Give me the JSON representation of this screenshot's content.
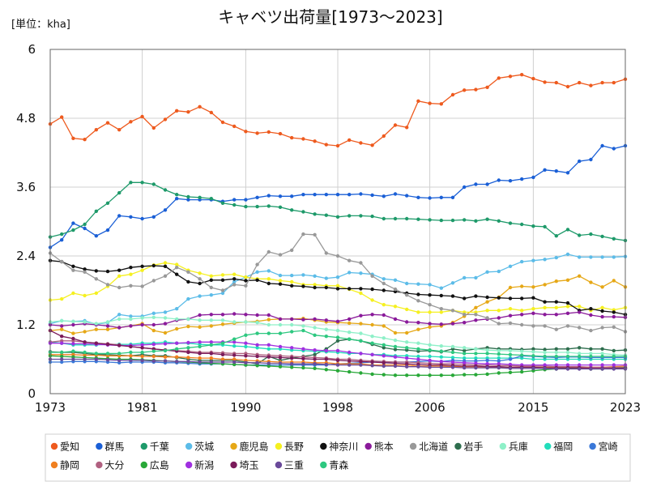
{
  "chart_data": {
    "type": "line",
    "title": "キャベツ出荷量[1973～2023]",
    "unit_label": "[単位：kha]",
    "xlabel": "",
    "ylabel": "",
    "xlim": [
      1973,
      2023
    ],
    "ylim": [
      0,
      6
    ],
    "x_ticks": [
      1973,
      1981,
      1990,
      1998,
      2006,
      2015,
      2023
    ],
    "y_ticks": [
      0,
      1.2,
      2.4,
      3.6,
      4.8,
      6
    ],
    "y_tick_labels": [
      "0",
      "1.2",
      "2.4",
      "3.6",
      "4.8",
      "6"
    ],
    "grid": true,
    "legend_position": "bottom",
    "x": [
      1973,
      1974,
      1975,
      1976,
      1977,
      1978,
      1979,
      1980,
      1981,
      1982,
      1983,
      1984,
      1985,
      1986,
      1987,
      1988,
      1989,
      1990,
      1991,
      1992,
      1993,
      1994,
      1995,
      1996,
      1997,
      1998,
      1999,
      2000,
      2001,
      2002,
      2003,
      2004,
      2005,
      2006,
      2007,
      2008,
      2009,
      2010,
      2011,
      2012,
      2013,
      2014,
      2015,
      2016,
      2017,
      2018,
      2019,
      2020,
      2021,
      2022,
      2023
    ],
    "series": [
      {
        "name": "愛知",
        "color": "#ee5a1e",
        "values": [
          4.7,
          4.82,
          4.45,
          4.43,
          4.6,
          4.72,
          4.6,
          4.74,
          4.83,
          4.63,
          4.78,
          4.93,
          4.91,
          5.0,
          4.9,
          4.73,
          4.66,
          4.57,
          4.54,
          4.56,
          4.53,
          4.46,
          4.44,
          4.4,
          4.34,
          4.32,
          4.42,
          4.37,
          4.33,
          4.49,
          4.68,
          4.64,
          5.1,
          5.06,
          5.05,
          5.21,
          5.29,
          5.3,
          5.34,
          5.5,
          5.53,
          5.56,
          5.49,
          5.43,
          5.42,
          5.35,
          5.42,
          5.37,
          5.42,
          5.42,
          5.48
        ]
      },
      {
        "name": "群馬",
        "color": "#1a5fd6",
        "values": [
          2.55,
          2.68,
          2.97,
          2.88,
          2.75,
          2.85,
          3.1,
          3.08,
          3.05,
          3.08,
          3.2,
          3.4,
          3.38,
          3.38,
          3.38,
          3.35,
          3.38,
          3.38,
          3.42,
          3.45,
          3.44,
          3.44,
          3.47,
          3.47,
          3.47,
          3.47,
          3.47,
          3.48,
          3.46,
          3.44,
          3.48,
          3.45,
          3.42,
          3.41,
          3.42,
          3.42,
          3.6,
          3.65,
          3.65,
          3.72,
          3.71,
          3.74,
          3.77,
          3.9,
          3.88,
          3.85,
          4.05,
          4.08,
          4.32,
          4.27,
          4.32
        ]
      },
      {
        "name": "千葉",
        "color": "#1e9a6a",
        "values": [
          2.73,
          2.78,
          2.85,
          2.95,
          3.18,
          3.32,
          3.5,
          3.68,
          3.68,
          3.65,
          3.55,
          3.47,
          3.43,
          3.42,
          3.4,
          3.32,
          3.29,
          3.26,
          3.26,
          3.27,
          3.25,
          3.2,
          3.17,
          3.13,
          3.11,
          3.08,
          3.1,
          3.1,
          3.09,
          3.05,
          3.05,
          3.05,
          3.04,
          3.03,
          3.02,
          3.02,
          3.03,
          3.01,
          3.04,
          3.01,
          2.97,
          2.95,
          2.92,
          2.91,
          2.75,
          2.86,
          2.76,
          2.78,
          2.74,
          2.7,
          2.67
        ]
      },
      {
        "name": "茨城",
        "color": "#5cbce8",
        "values": [
          1.22,
          1.27,
          1.26,
          1.27,
          1.21,
          1.24,
          1.38,
          1.35,
          1.35,
          1.4,
          1.42,
          1.48,
          1.65,
          1.7,
          1.72,
          1.75,
          1.95,
          2.03,
          2.12,
          2.14,
          2.06,
          2.06,
          2.07,
          2.05,
          2.01,
          2.03,
          2.11,
          2.1,
          2.08,
          2.0,
          1.98,
          1.92,
          1.91,
          1.9,
          1.84,
          1.93,
          2.02,
          2.02,
          2.12,
          2.13,
          2.22,
          2.3,
          2.32,
          2.34,
          2.37,
          2.43,
          2.38,
          2.38,
          2.38,
          2.38,
          2.39
        ]
      },
      {
        "name": "鹿児島",
        "color": "#e6a817",
        "values": [
          1.1,
          1.12,
          1.05,
          1.08,
          1.12,
          1.12,
          1.15,
          1.18,
          1.22,
          1.1,
          1.06,
          1.13,
          1.17,
          1.16,
          1.18,
          1.21,
          1.23,
          1.25,
          1.26,
          1.29,
          1.3,
          1.3,
          1.31,
          1.28,
          1.25,
          1.24,
          1.23,
          1.22,
          1.2,
          1.18,
          1.06,
          1.06,
          1.12,
          1.16,
          1.18,
          1.24,
          1.35,
          1.5,
          1.6,
          1.68,
          1.85,
          1.87,
          1.86,
          1.9,
          1.96,
          1.98,
          2.05,
          1.94,
          1.86,
          1.97,
          1.86
        ]
      },
      {
        "name": "長野",
        "color": "#f5f020",
        "values": [
          1.63,
          1.65,
          1.75,
          1.71,
          1.75,
          1.87,
          2.05,
          2.08,
          2.15,
          2.24,
          2.28,
          2.25,
          2.15,
          2.1,
          2.05,
          2.07,
          2.08,
          2.03,
          2.0,
          2.0,
          1.97,
          1.95,
          1.9,
          1.9,
          1.88,
          1.88,
          1.82,
          1.75,
          1.63,
          1.55,
          1.52,
          1.47,
          1.42,
          1.42,
          1.42,
          1.45,
          1.42,
          1.42,
          1.45,
          1.45,
          1.48,
          1.45,
          1.48,
          1.5,
          1.5,
          1.52,
          1.52,
          1.45,
          1.5,
          1.46,
          1.5
        ]
      },
      {
        "name": "神奈川",
        "color": "#111111",
        "values": [
          2.32,
          2.3,
          2.22,
          2.17,
          2.14,
          2.13,
          2.15,
          2.2,
          2.22,
          2.23,
          2.22,
          2.08,
          1.95,
          1.92,
          1.98,
          1.98,
          2.0,
          1.97,
          1.98,
          1.92,
          1.91,
          1.88,
          1.87,
          1.85,
          1.85,
          1.83,
          1.83,
          1.83,
          1.82,
          1.8,
          1.78,
          1.75,
          1.73,
          1.72,
          1.71,
          1.7,
          1.66,
          1.7,
          1.68,
          1.67,
          1.66,
          1.66,
          1.67,
          1.6,
          1.6,
          1.58,
          1.45,
          1.48,
          1.44,
          1.42,
          1.38
        ]
      },
      {
        "name": "熊本",
        "color": "#8a1a9a",
        "values": [
          1.2,
          1.18,
          1.2,
          1.22,
          1.2,
          1.18,
          1.15,
          1.18,
          1.2,
          1.2,
          1.22,
          1.28,
          1.3,
          1.37,
          1.38,
          1.38,
          1.39,
          1.38,
          1.37,
          1.37,
          1.3,
          1.3,
          1.29,
          1.3,
          1.28,
          1.26,
          1.3,
          1.36,
          1.38,
          1.37,
          1.3,
          1.25,
          1.24,
          1.22,
          1.21,
          1.22,
          1.24,
          1.28,
          1.3,
          1.32,
          1.36,
          1.38,
          1.4,
          1.38,
          1.38,
          1.4,
          1.42,
          1.37,
          1.34,
          1.34,
          1.33
        ]
      },
      {
        "name": "北海道",
        "color": "#999999",
        "values": [
          2.45,
          2.3,
          2.15,
          2.12,
          2.0,
          1.9,
          1.85,
          1.88,
          1.87,
          1.97,
          2.05,
          2.2,
          2.12,
          2.0,
          1.85,
          1.8,
          1.9,
          1.88,
          2.25,
          2.47,
          2.42,
          2.5,
          2.78,
          2.77,
          2.45,
          2.4,
          2.32,
          2.28,
          2.05,
          1.92,
          1.82,
          1.72,
          1.62,
          1.55,
          1.48,
          1.45,
          1.38,
          1.38,
          1.32,
          1.22,
          1.23,
          1.2,
          1.18,
          1.18,
          1.12,
          1.18,
          1.15,
          1.1,
          1.15,
          1.16,
          1.08
        ]
      },
      {
        "name": "岩手",
        "color": "#2e6e4e",
        "values": [
          0.73,
          0.72,
          0.72,
          0.7,
          0.68,
          0.68,
          0.67,
          0.66,
          0.68,
          0.66,
          0.66,
          0.63,
          0.6,
          0.58,
          0.58,
          0.58,
          0.58,
          0.55,
          0.52,
          0.65,
          0.58,
          0.62,
          0.65,
          0.68,
          0.78,
          0.92,
          0.95,
          0.92,
          0.86,
          0.8,
          0.77,
          0.76,
          0.74,
          0.75,
          0.73,
          0.78,
          0.75,
          0.78,
          0.8,
          0.78,
          0.78,
          0.77,
          0.78,
          0.77,
          0.78,
          0.78,
          0.8,
          0.78,
          0.78,
          0.75,
          0.76
        ]
      },
      {
        "name": "兵庫",
        "color": "#8ef0c8",
        "values": [
          1.25,
          1.27,
          1.26,
          1.25,
          1.22,
          1.25,
          1.3,
          1.3,
          1.32,
          1.33,
          1.32,
          1.3,
          1.3,
          1.28,
          1.28,
          1.28,
          1.25,
          1.25,
          1.24,
          1.2,
          1.2,
          1.2,
          1.18,
          1.15,
          1.12,
          1.1,
          1.07,
          1.05,
          1.0,
          0.97,
          0.93,
          0.9,
          0.88,
          0.85,
          0.83,
          0.82,
          0.8,
          0.78,
          0.76,
          0.75,
          0.75,
          0.74,
          0.73,
          0.72,
          0.72,
          0.72,
          0.7,
          0.7,
          0.7,
          0.68,
          0.67
        ]
      },
      {
        "name": "福岡",
        "color": "#22ddbb",
        "values": [
          0.9,
          0.88,
          0.85,
          0.85,
          0.85,
          0.86,
          0.86,
          0.86,
          0.88,
          0.88,
          0.9,
          0.88,
          0.88,
          0.86,
          0.85,
          0.85,
          0.83,
          0.82,
          0.8,
          0.78,
          0.78,
          0.76,
          0.75,
          0.74,
          0.73,
          0.72,
          0.7,
          0.7,
          0.68,
          0.68,
          0.66,
          0.66,
          0.65,
          0.65,
          0.64,
          0.63,
          0.62,
          0.62,
          0.62,
          0.62,
          0.62,
          0.62,
          0.6,
          0.6,
          0.6,
          0.6,
          0.6,
          0.6,
          0.6,
          0.6,
          0.6
        ]
      },
      {
        "name": "宮崎",
        "color": "#3a78d8",
        "values": [
          0.55,
          0.55,
          0.56,
          0.56,
          0.56,
          0.55,
          0.54,
          0.55,
          0.55,
          0.55,
          0.54,
          0.54,
          0.53,
          0.52,
          0.52,
          0.52,
          0.51,
          0.5,
          0.5,
          0.5,
          0.5,
          0.5,
          0.5,
          0.5,
          0.5,
          0.52,
          0.53,
          0.54,
          0.55,
          0.55,
          0.55,
          0.55,
          0.56,
          0.57,
          0.56,
          0.58,
          0.57,
          0.57,
          0.58,
          0.57,
          0.6,
          0.66,
          0.65,
          0.64,
          0.63,
          0.64,
          0.64,
          0.63,
          0.63,
          0.63,
          0.63
        ]
      },
      {
        "name": "静岡",
        "color": "#f08020",
        "values": [
          0.68,
          0.68,
          0.68,
          0.67,
          0.67,
          0.66,
          0.66,
          0.66,
          0.65,
          0.65,
          0.64,
          0.64,
          0.63,
          0.62,
          0.62,
          0.6,
          0.6,
          0.58,
          0.57,
          0.56,
          0.55,
          0.55,
          0.55,
          0.54,
          0.54,
          0.52,
          0.52,
          0.52,
          0.5,
          0.5,
          0.5,
          0.5,
          0.48,
          0.48,
          0.48,
          0.47,
          0.47,
          0.47,
          0.46,
          0.46,
          0.46,
          0.46,
          0.46,
          0.46,
          0.46,
          0.46,
          0.46,
          0.46,
          0.46,
          0.47,
          0.48
        ]
      },
      {
        "name": "大分",
        "color": "#b06080",
        "values": [
          0.9,
          0.92,
          0.92,
          0.9,
          0.88,
          0.87,
          0.85,
          0.82,
          0.8,
          0.78,
          0.76,
          0.75,
          0.74,
          0.72,
          0.72,
          0.71,
          0.7,
          0.7,
          0.68,
          0.67,
          0.66,
          0.65,
          0.64,
          0.63,
          0.62,
          0.6,
          0.6,
          0.58,
          0.57,
          0.56,
          0.55,
          0.55,
          0.54,
          0.53,
          0.52,
          0.52,
          0.51,
          0.5,
          0.5,
          0.49,
          0.49,
          0.48,
          0.48,
          0.48,
          0.47,
          0.47,
          0.47,
          0.46,
          0.46,
          0.46,
          0.46
        ]
      },
      {
        "name": "広島",
        "color": "#28a838",
        "values": [
          0.66,
          0.65,
          0.64,
          0.63,
          0.62,
          0.61,
          0.6,
          0.6,
          0.59,
          0.58,
          0.57,
          0.56,
          0.55,
          0.54,
          0.53,
          0.52,
          0.51,
          0.5,
          0.49,
          0.48,
          0.47,
          0.46,
          0.45,
          0.44,
          0.42,
          0.4,
          0.38,
          0.36,
          0.34,
          0.33,
          0.32,
          0.32,
          0.32,
          0.32,
          0.32,
          0.32,
          0.33,
          0.33,
          0.34,
          0.36,
          0.37,
          0.38,
          0.4,
          0.42,
          0.43,
          0.44,
          0.44,
          0.43,
          0.43,
          0.44,
          0.45
        ]
      },
      {
        "name": "新潟",
        "color": "#a030e0",
        "values": [
          0.88,
          0.88,
          0.87,
          0.87,
          0.86,
          0.85,
          0.84,
          0.84,
          0.85,
          0.86,
          0.87,
          0.88,
          0.89,
          0.9,
          0.9,
          0.9,
          0.9,
          0.88,
          0.85,
          0.85,
          0.82,
          0.8,
          0.78,
          0.76,
          0.75,
          0.75,
          0.72,
          0.7,
          0.68,
          0.66,
          0.64,
          0.62,
          0.6,
          0.58,
          0.56,
          0.55,
          0.54,
          0.53,
          0.52,
          0.52,
          0.51,
          0.5,
          0.5,
          0.5,
          0.5,
          0.5,
          0.5,
          0.5,
          0.5,
          0.5,
          0.5
        ]
      },
      {
        "name": "埼玉",
        "color": "#7a1a5a",
        "values": [
          1.1,
          1.0,
          0.96,
          0.9,
          0.88,
          0.86,
          0.84,
          0.82,
          0.8,
          0.78,
          0.76,
          0.74,
          0.72,
          0.7,
          0.7,
          0.68,
          0.67,
          0.66,
          0.65,
          0.64,
          0.63,
          0.62,
          0.61,
          0.6,
          0.6,
          0.58,
          0.57,
          0.56,
          0.55,
          0.54,
          0.53,
          0.52,
          0.51,
          0.5,
          0.5,
          0.49,
          0.48,
          0.48,
          0.47,
          0.47,
          0.46,
          0.46,
          0.46,
          0.45,
          0.45,
          0.45,
          0.45,
          0.44,
          0.44,
          0.44,
          0.44
        ]
      },
      {
        "name": "三重",
        "color": "#6a4a9a",
        "values": [
          0.6,
          0.6,
          0.6,
          0.6,
          0.6,
          0.59,
          0.58,
          0.58,
          0.58,
          0.57,
          0.57,
          0.56,
          0.56,
          0.55,
          0.55,
          0.55,
          0.55,
          0.54,
          0.54,
          0.53,
          0.53,
          0.52,
          0.52,
          0.52,
          0.51,
          0.5,
          0.5,
          0.5,
          0.49,
          0.48,
          0.48,
          0.47,
          0.47,
          0.46,
          0.46,
          0.46,
          0.45,
          0.45,
          0.45,
          0.45,
          0.44,
          0.44,
          0.44,
          0.44,
          0.43,
          0.43,
          0.43,
          0.43,
          0.43,
          0.43,
          0.43
        ]
      },
      {
        "name": "青森",
        "color": "#2ec880",
        "values": [
          0.72,
          0.72,
          0.74,
          0.72,
          0.7,
          0.7,
          0.7,
          0.72,
          0.72,
          0.74,
          0.75,
          0.78,
          0.8,
          0.82,
          0.85,
          0.88,
          0.95,
          1.02,
          1.05,
          1.05,
          1.05,
          1.08,
          1.1,
          1.02,
          1.0,
          0.98,
          0.95,
          0.92,
          0.88,
          0.85,
          0.82,
          0.8,
          0.78,
          0.76,
          0.74,
          0.72,
          0.7,
          0.7,
          0.7,
          0.69,
          0.68,
          0.67,
          0.66,
          0.65,
          0.65,
          0.65,
          0.65,
          0.65,
          0.65,
          0.65,
          0.65
        ]
      }
    ]
  }
}
